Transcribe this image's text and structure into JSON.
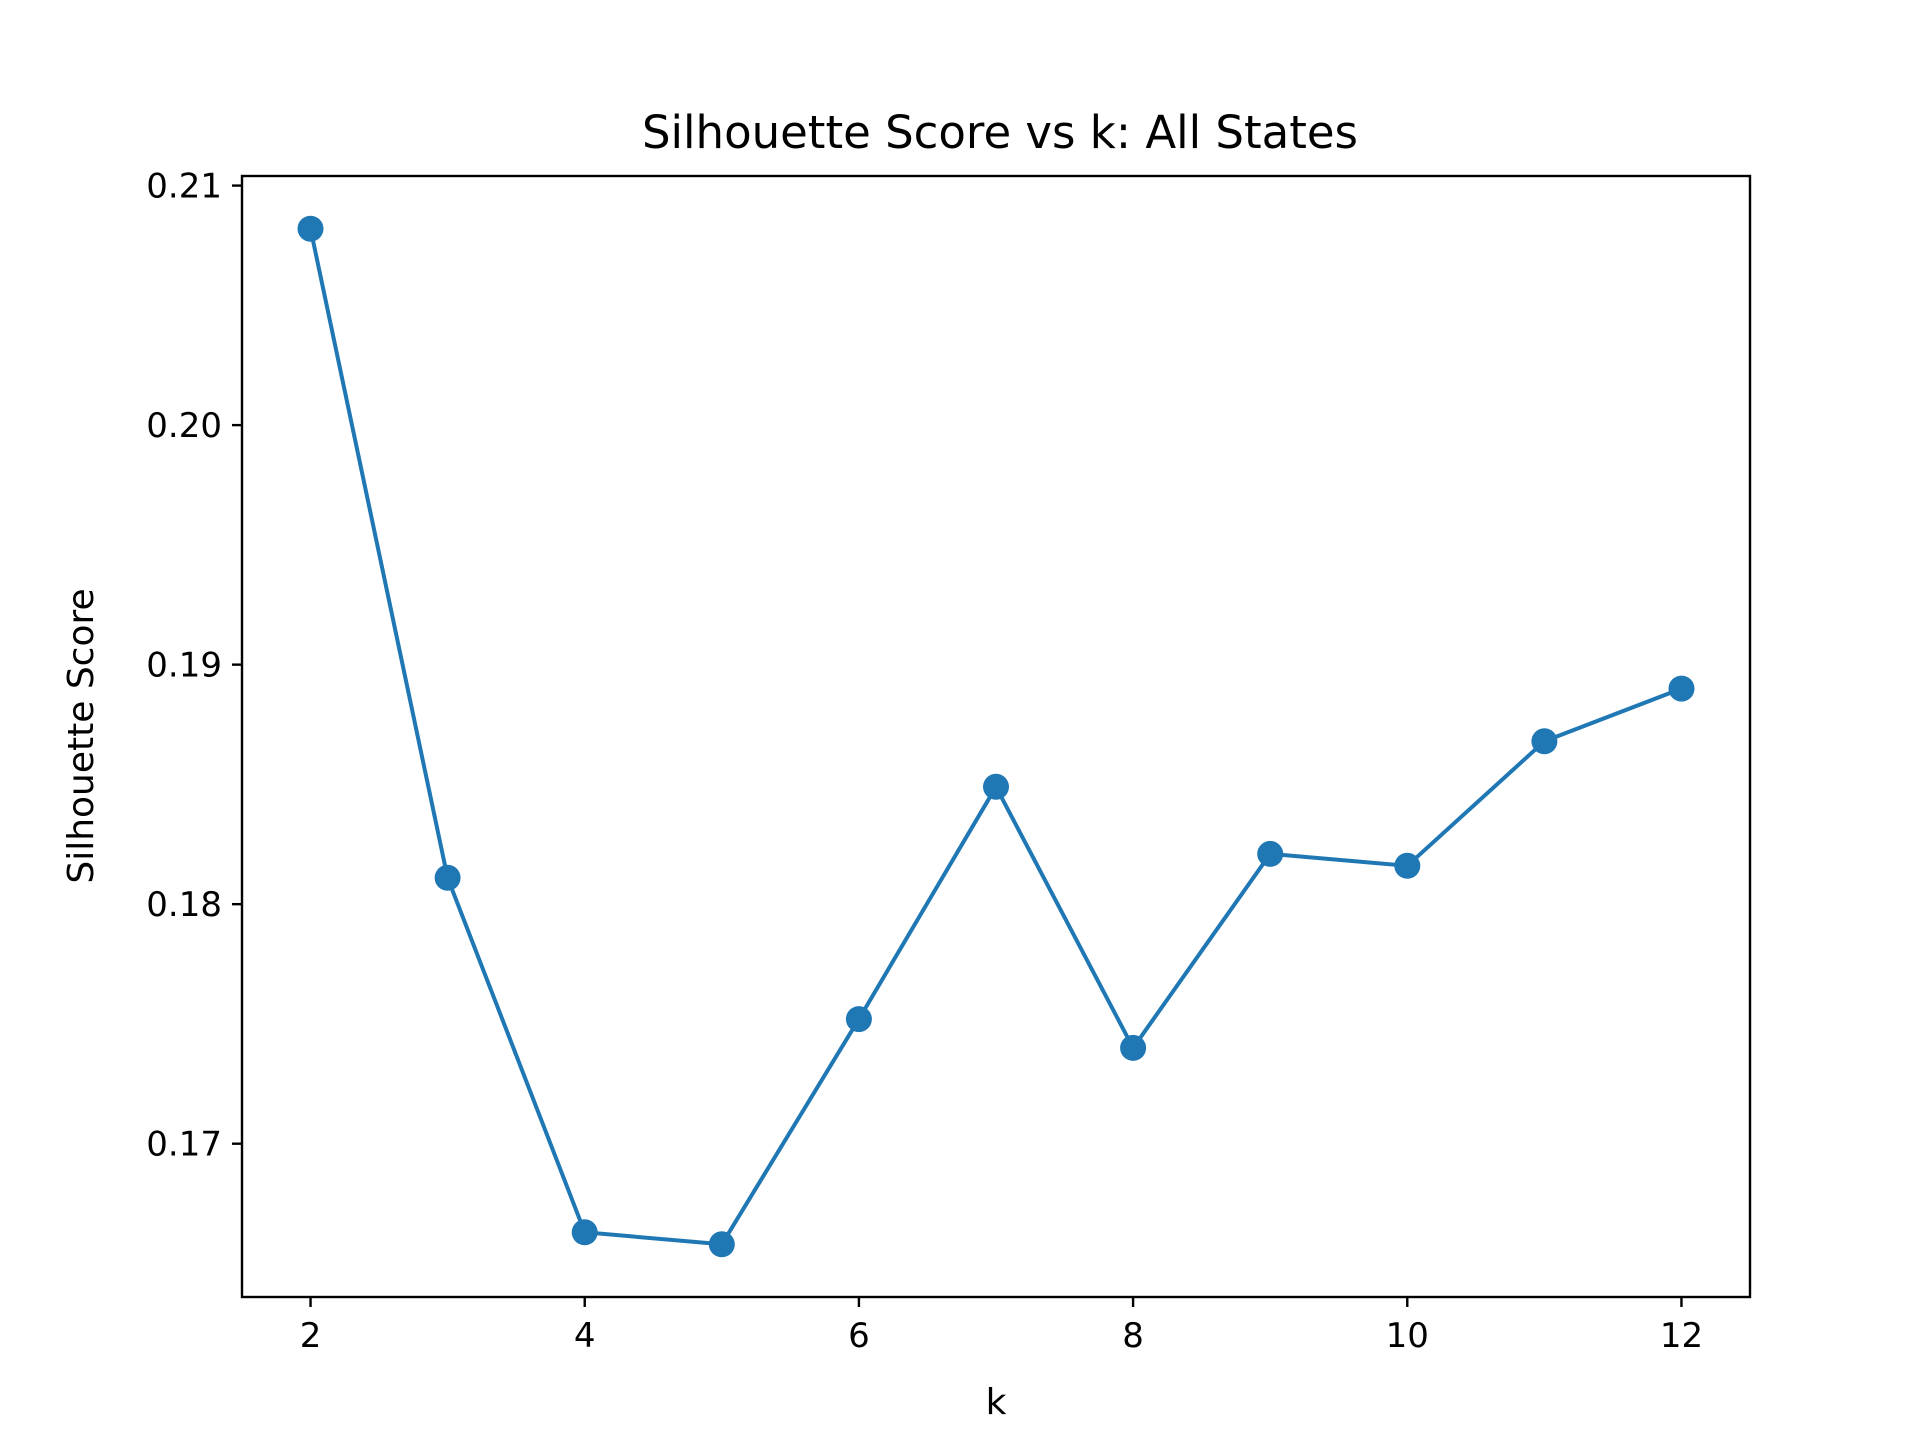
{
  "chart_data": {
    "type": "line",
    "title": "Silhouette Score vs k: All States",
    "xlabel": "k",
    "ylabel": "Silhouette Score",
    "xlim": [
      1.5,
      12.5
    ],
    "ylim": [
      0.1636,
      0.2104
    ],
    "xticks": [
      2,
      4,
      6,
      8,
      10,
      12
    ],
    "xtick_labels": [
      "2",
      "4",
      "6",
      "8",
      "10",
      "12"
    ],
    "yticks": [
      0.17,
      0.18,
      0.19,
      0.2,
      0.21
    ],
    "ytick_labels": [
      "0.17",
      "0.18",
      "0.19",
      "0.20",
      "0.21"
    ],
    "grid": false,
    "legend": "none",
    "series": [
      {
        "color": "#1f77b4",
        "marker": "circle",
        "x": [
          2,
          3,
          4,
          5,
          6,
          7,
          8,
          9,
          10,
          11,
          12
        ],
        "y": [
          0.2082,
          0.1811,
          0.1663,
          0.1658,
          0.1752,
          0.1849,
          0.174,
          0.1821,
          0.1816,
          0.1868,
          0.189
        ]
      }
    ]
  }
}
